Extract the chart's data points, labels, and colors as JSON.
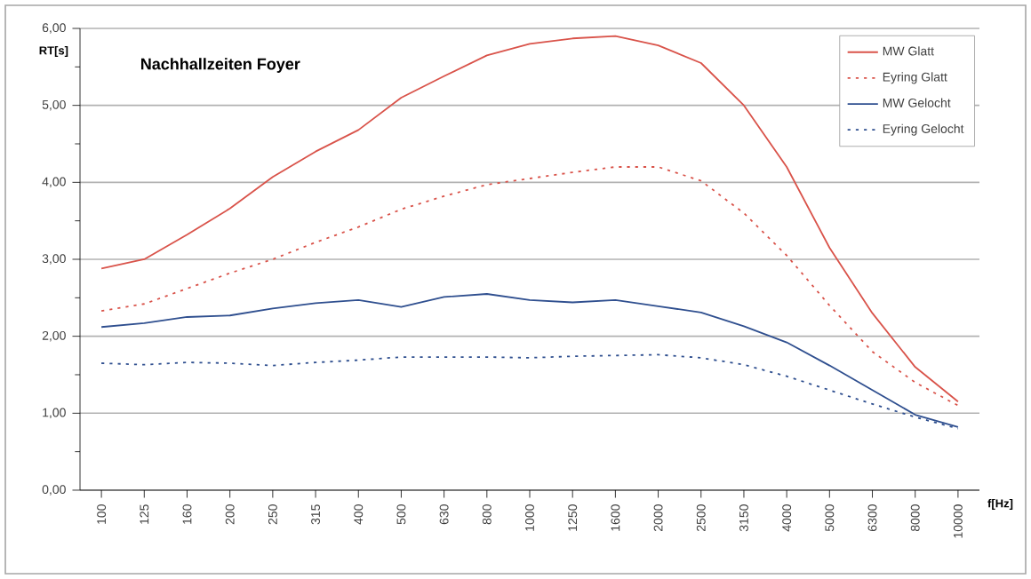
{
  "chart_data": {
    "type": "line",
    "title": "Nachhallzeiten Foyer",
    "xlabel": "f[Hz]",
    "ylabel": "RT[s]",
    "categories": [
      "100",
      "125",
      "160",
      "200",
      "250",
      "315",
      "400",
      "500",
      "630",
      "800",
      "1000",
      "1250",
      "1600",
      "2000",
      "2500",
      "3150",
      "4000",
      "5000",
      "6300",
      "8000",
      "10000"
    ],
    "series": [
      {
        "name": "MW Glatt",
        "color": "#d9534a",
        "line_style": "solid",
        "values": [
          2.88,
          3.0,
          3.32,
          3.66,
          4.07,
          4.4,
          4.68,
          5.1,
          5.38,
          5.65,
          5.8,
          5.87,
          5.9,
          5.78,
          5.55,
          5.0,
          4.2,
          3.15,
          2.3,
          1.6,
          1.15
        ]
      },
      {
        "name": "Eyring Glatt",
        "color": "#d9534a",
        "line_style": "dashed",
        "values": [
          2.33,
          2.42,
          2.62,
          2.82,
          3.0,
          3.22,
          3.42,
          3.65,
          3.82,
          3.97,
          4.05,
          4.13,
          4.2,
          4.2,
          4.02,
          3.6,
          3.05,
          2.4,
          1.8,
          1.4,
          1.1
        ]
      },
      {
        "name": "MW Gelocht",
        "color": "#2f4f8f",
        "line_style": "solid",
        "values": [
          2.12,
          2.17,
          2.25,
          2.27,
          2.36,
          2.43,
          2.47,
          2.38,
          2.51,
          2.55,
          2.47,
          2.44,
          2.47,
          2.39,
          2.31,
          2.13,
          1.92,
          1.62,
          1.3,
          0.98,
          0.82
        ]
      },
      {
        "name": "Eyring Gelocht",
        "color": "#2f4f8f",
        "line_style": "dashed",
        "values": [
          1.65,
          1.63,
          1.66,
          1.65,
          1.62,
          1.66,
          1.69,
          1.73,
          1.73,
          1.73,
          1.72,
          1.74,
          1.75,
          1.76,
          1.72,
          1.63,
          1.48,
          1.3,
          1.12,
          0.95,
          0.8
        ]
      }
    ],
    "ylim": [
      0,
      6
    ],
    "yticks": [
      {
        "value": 0,
        "label": "0,00"
      },
      {
        "value": 1,
        "label": "1,00"
      },
      {
        "value": 2,
        "label": "2,00"
      },
      {
        "value": 3,
        "label": "3,00"
      },
      {
        "value": 4,
        "label": "4,00"
      },
      {
        "value": 5,
        "label": "5,00"
      },
      {
        "value": 6,
        "label": "6,00"
      }
    ],
    "grid": "y",
    "legend": "top right",
    "marker": "none"
  }
}
